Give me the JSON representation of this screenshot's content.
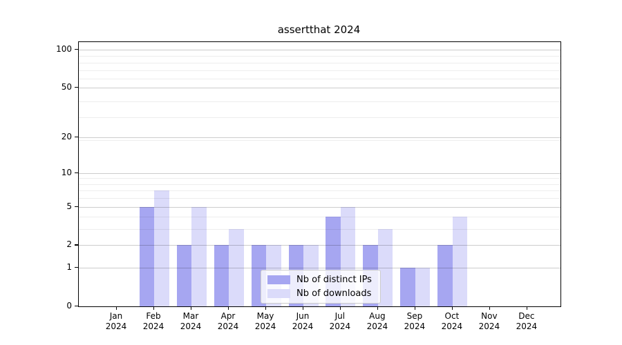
{
  "chart_data": {
    "type": "bar",
    "title": "assertthat 2024",
    "categories": [
      "Jan",
      "Feb",
      "Mar",
      "Apr",
      "May",
      "Jun",
      "Jul",
      "Aug",
      "Sep",
      "Oct",
      "Nov",
      "Dec"
    ],
    "category_year": "2024",
    "series": [
      {
        "name": "Nb of distinct IPs",
        "color": "#a6a6f1",
        "values": [
          0,
          5,
          2,
          2,
          2,
          2,
          4,
          2,
          1,
          2,
          0,
          0
        ]
      },
      {
        "name": "Nb of downloads",
        "color": "#dbdbfa",
        "values": [
          0,
          7,
          5,
          3,
          2,
          2,
          5,
          3,
          1,
          4,
          0,
          0
        ]
      }
    ],
    "xlabel": "",
    "ylabel": "",
    "yscale": "log1p",
    "ylim": [
      0,
      114
    ],
    "ytick_values": [
      0,
      1,
      2,
      5,
      10,
      20,
      50,
      100
    ],
    "ytick_labels": [
      "0",
      "1",
      "2",
      "5",
      "10",
      "20",
      "50",
      "100"
    ],
    "minor_tick_values": [
      3,
      4,
      6,
      7,
      8,
      9,
      19,
      29,
      39,
      59,
      69,
      79,
      89
    ],
    "grid": true,
    "grid_above_bars": true,
    "legend": {
      "position": "lower center",
      "entries": [
        "Nb of distinct IPs",
        "Nb of downloads"
      ]
    }
  },
  "colors": {
    "background": "#ffffff",
    "bar_distinct_ips": "#a6a6f1",
    "bar_downloads": "#dbdbfa",
    "grid_major": "#cccccc",
    "grid_minor": "#ededed",
    "spine": "#000000",
    "legend_border": "#cccccc",
    "text": "#000000"
  }
}
